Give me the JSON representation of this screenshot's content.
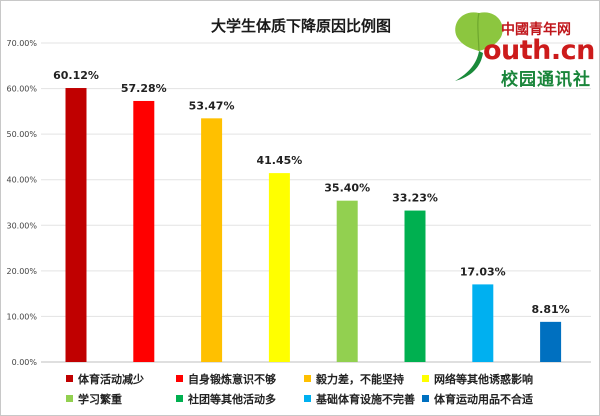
{
  "chart_data": {
    "type": "bar",
    "title": "大学生体质下降原因比例图",
    "categories": [
      "体育活动减少",
      "自身锻炼意识不够",
      "毅力差，不能坚持",
      "网络等其他诱惑影响",
      "学习繁重",
      "社团等其他活动多",
      "基础体育设施不完善",
      "体育运动用品不合适"
    ],
    "values": [
      60.12,
      57.28,
      53.47,
      41.45,
      35.4,
      33.23,
      17.03,
      8.81
    ],
    "data_labels": [
      "60.12%",
      "57.28%",
      "53.47%",
      "41.45%",
      "35.40%",
      "33.23%",
      "17.03%",
      "8.81%"
    ],
    "colors": [
      "#c00000",
      "#ff0000",
      "#ffc000",
      "#ffff00",
      "#92d050",
      "#00b050",
      "#00b0f0",
      "#0070c0"
    ],
    "ylim": [
      0,
      70
    ],
    "yticks": [
      0,
      10,
      20,
      30,
      40,
      50,
      60,
      70
    ],
    "ytick_labels": [
      "0.00%",
      "10.00%",
      "20.00%",
      "30.00%",
      "40.00%",
      "50.00%",
      "60.00%",
      "70.00%"
    ],
    "grid": true,
    "legend_position": "bottom"
  },
  "logo": {
    "top_text": "中國青年网",
    "main_text": "outh.cn",
    "sub_text": "校园通讯社",
    "leaf_color": "#8cc63f",
    "stem_color": "#1a8a3a"
  }
}
